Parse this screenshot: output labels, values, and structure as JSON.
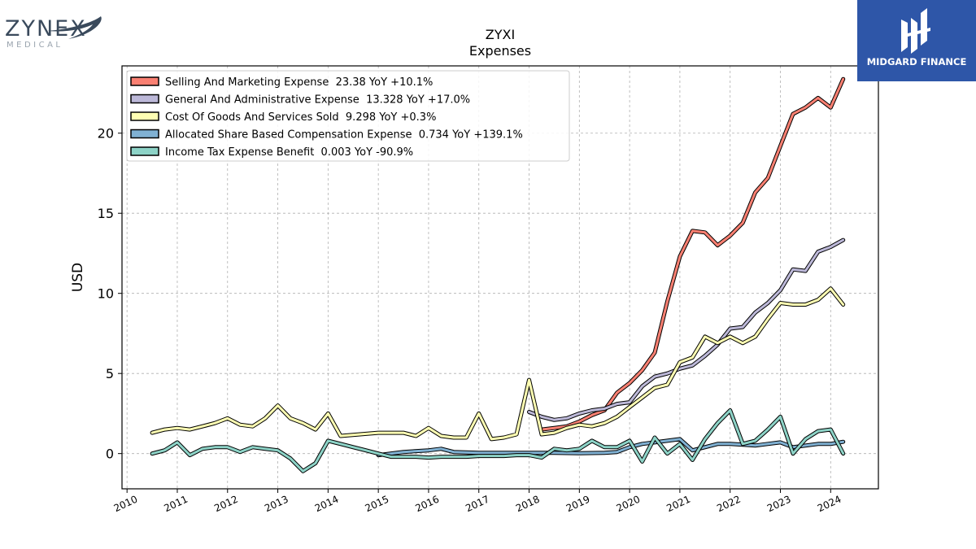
{
  "brand_left": {
    "name": "ZYNEX",
    "sub": "MEDICAL"
  },
  "brand_right": {
    "name": "MIDGARD FINANCE"
  },
  "chart_data": {
    "type": "line",
    "title": "ZYXI",
    "subtitle": "Expenses",
    "ylabel": "USD",
    "xlabel": "",
    "xlim": [
      2009.9,
      2024.95
    ],
    "ylim": [
      -2.2,
      24.2
    ],
    "yticks": [
      0,
      5,
      10,
      15,
      20
    ],
    "xticks": [
      2010,
      2011,
      2012,
      2013,
      2014,
      2015,
      2016,
      2017,
      2018,
      2019,
      2020,
      2021,
      2022,
      2023,
      2024
    ],
    "grid": true,
    "legend_position": "top-left",
    "series": [
      {
        "name": "Selling And Marketing Expense",
        "legend": "Selling And Marketing Expense  23.38 YoY +10.1%",
        "color": "#fa8072",
        "points": [
          [
            2018.25,
            1.5
          ],
          [
            2018.5,
            1.6
          ],
          [
            2018.75,
            1.7
          ],
          [
            2019.0,
            2.0
          ],
          [
            2019.25,
            2.4
          ],
          [
            2019.5,
            2.7
          ],
          [
            2019.75,
            3.8
          ],
          [
            2020.0,
            4.4
          ],
          [
            2020.25,
            5.2
          ],
          [
            2020.5,
            6.3
          ],
          [
            2020.75,
            9.5
          ],
          [
            2021.0,
            12.3
          ],
          [
            2021.25,
            13.9
          ],
          [
            2021.5,
            13.8
          ],
          [
            2021.75,
            13.0
          ],
          [
            2022.0,
            13.6
          ],
          [
            2022.25,
            14.4
          ],
          [
            2022.5,
            16.3
          ],
          [
            2022.75,
            17.2
          ],
          [
            2023.0,
            19.2
          ],
          [
            2023.25,
            21.2
          ],
          [
            2023.5,
            21.6
          ],
          [
            2023.75,
            22.2
          ],
          [
            2024.0,
            21.6
          ],
          [
            2024.25,
            23.38
          ]
        ]
      },
      {
        "name": "General And Administrative Expense",
        "legend": "General And Administrative Expense  13.328 YoY +17.0%",
        "color": "#bcb8d8",
        "points": [
          [
            2018.0,
            2.6
          ],
          [
            2018.25,
            2.3
          ],
          [
            2018.5,
            2.1
          ],
          [
            2018.75,
            2.2
          ],
          [
            2019.0,
            2.5
          ],
          [
            2019.25,
            2.7
          ],
          [
            2019.5,
            2.8
          ],
          [
            2019.75,
            3.1
          ],
          [
            2020.0,
            3.2
          ],
          [
            2020.25,
            4.2
          ],
          [
            2020.5,
            4.8
          ],
          [
            2020.75,
            5.0
          ],
          [
            2021.0,
            5.3
          ],
          [
            2021.25,
            5.5
          ],
          [
            2021.5,
            6.1
          ],
          [
            2021.75,
            6.8
          ],
          [
            2022.0,
            7.8
          ],
          [
            2022.25,
            7.9
          ],
          [
            2022.5,
            8.8
          ],
          [
            2022.75,
            9.4
          ],
          [
            2023.0,
            10.2
          ],
          [
            2023.25,
            11.5
          ],
          [
            2023.5,
            11.4
          ],
          [
            2023.75,
            12.6
          ],
          [
            2024.0,
            12.9
          ],
          [
            2024.25,
            13.328
          ]
        ]
      },
      {
        "name": "Cost Of Goods And Services Sold",
        "legend": "Cost Of Goods And Services Sold  9.298 YoY +0.3%",
        "color": "#ffffb3",
        "points": [
          [
            2010.5,
            1.3
          ],
          [
            2010.75,
            1.5
          ],
          [
            2011.0,
            1.6
          ],
          [
            2011.25,
            1.5
          ],
          [
            2011.5,
            1.7
          ],
          [
            2011.75,
            1.9
          ],
          [
            2012.0,
            2.2
          ],
          [
            2012.25,
            1.8
          ],
          [
            2012.5,
            1.7
          ],
          [
            2012.75,
            2.2
          ],
          [
            2013.0,
            3.0
          ],
          [
            2013.25,
            2.2
          ],
          [
            2013.5,
            1.9
          ],
          [
            2013.75,
            1.5
          ],
          [
            2014.0,
            2.5
          ],
          [
            2014.25,
            1.1
          ],
          [
            2015.0,
            1.3
          ],
          [
            2015.25,
            1.3
          ],
          [
            2015.5,
            1.3
          ],
          [
            2015.75,
            1.1
          ],
          [
            2016.0,
            1.6
          ],
          [
            2016.25,
            1.1
          ],
          [
            2016.5,
            1.0
          ],
          [
            2016.75,
            1.0
          ],
          [
            2017.0,
            2.5
          ],
          [
            2017.25,
            0.9
          ],
          [
            2017.5,
            1.0
          ],
          [
            2017.75,
            1.2
          ],
          [
            2018.0,
            4.6
          ],
          [
            2018.25,
            1.2
          ],
          [
            2018.5,
            1.3
          ],
          [
            2018.75,
            1.6
          ],
          [
            2019.0,
            1.8
          ],
          [
            2019.25,
            1.7
          ],
          [
            2019.5,
            1.9
          ],
          [
            2019.75,
            2.3
          ],
          [
            2020.0,
            2.9
          ],
          [
            2020.25,
            3.5
          ],
          [
            2020.5,
            4.1
          ],
          [
            2020.75,
            4.3
          ],
          [
            2021.0,
            5.7
          ],
          [
            2021.25,
            6.0
          ],
          [
            2021.5,
            7.3
          ],
          [
            2021.75,
            6.9
          ],
          [
            2022.0,
            7.3
          ],
          [
            2022.25,
            6.9
          ],
          [
            2022.5,
            7.3
          ],
          [
            2022.75,
            8.4
          ],
          [
            2023.0,
            9.4
          ],
          [
            2023.25,
            9.3
          ],
          [
            2023.5,
            9.3
          ],
          [
            2023.75,
            9.6
          ],
          [
            2024.0,
            10.3
          ],
          [
            2024.25,
            9.298
          ]
        ]
      },
      {
        "name": "Allocated Share Based Compensation Expense",
        "legend": "Allocated Share Based Compensation Expense  0.734 YoY +139.1%",
        "color": "#80b1d3",
        "points": [
          [
            2015.0,
            -0.1
          ],
          [
            2015.5,
            0.1
          ],
          [
            2016.0,
            0.2
          ],
          [
            2016.25,
            0.3
          ],
          [
            2016.5,
            0.1
          ],
          [
            2017.0,
            0.05
          ],
          [
            2017.5,
            0.05
          ],
          [
            2018.0,
            0.05
          ],
          [
            2018.5,
            0.05
          ],
          [
            2019.0,
            0.02
          ],
          [
            2019.5,
            0.05
          ],
          [
            2019.75,
            0.1
          ],
          [
            2020.0,
            0.4
          ],
          [
            2020.25,
            0.6
          ],
          [
            2020.5,
            0.7
          ],
          [
            2020.75,
            0.8
          ],
          [
            2021.0,
            0.9
          ],
          [
            2021.25,
            0.2
          ],
          [
            2021.5,
            0.4
          ],
          [
            2021.75,
            0.6
          ],
          [
            2022.0,
            0.6
          ],
          [
            2022.25,
            0.55
          ],
          [
            2022.5,
            0.5
          ],
          [
            2022.75,
            0.6
          ],
          [
            2023.0,
            0.7
          ],
          [
            2023.25,
            0.4
          ],
          [
            2023.5,
            0.5
          ],
          [
            2023.75,
            0.6
          ],
          [
            2024.0,
            0.6
          ],
          [
            2024.25,
            0.734
          ]
        ]
      },
      {
        "name": "Income Tax Expense Benefit",
        "legend": "Income Tax Expense Benefit  0.003 YoY -90.9%",
        "color": "#8dd3c7",
        "points": [
          [
            2010.5,
            0.0
          ],
          [
            2010.75,
            0.2
          ],
          [
            2011.0,
            0.7
          ],
          [
            2011.25,
            -0.1
          ],
          [
            2011.5,
            0.3
          ],
          [
            2011.75,
            0.4
          ],
          [
            2012.0,
            0.4
          ],
          [
            2012.25,
            0.1
          ],
          [
            2012.5,
            0.4
          ],
          [
            2012.75,
            0.3
          ],
          [
            2013.0,
            0.2
          ],
          [
            2013.25,
            -0.3
          ],
          [
            2013.5,
            -1.1
          ],
          [
            2013.75,
            -0.6
          ],
          [
            2014.0,
            0.8
          ],
          [
            2014.25,
            0.6
          ],
          [
            2014.5,
            0.4
          ],
          [
            2014.75,
            0.2
          ],
          [
            2015.0,
            0.0
          ],
          [
            2015.25,
            -0.2
          ],
          [
            2015.5,
            -0.2
          ],
          [
            2015.75,
            -0.2
          ],
          [
            2016.0,
            -0.25
          ],
          [
            2016.25,
            -0.2
          ],
          [
            2016.5,
            -0.2
          ],
          [
            2016.75,
            -0.2
          ],
          [
            2017.0,
            -0.15
          ],
          [
            2017.5,
            -0.15
          ],
          [
            2017.75,
            -0.1
          ],
          [
            2018.0,
            -0.1
          ],
          [
            2018.25,
            -0.25
          ],
          [
            2018.5,
            0.3
          ],
          [
            2018.75,
            0.2
          ],
          [
            2019.0,
            0.3
          ],
          [
            2019.25,
            0.8
          ],
          [
            2019.5,
            0.4
          ],
          [
            2019.75,
            0.4
          ],
          [
            2020.0,
            0.8
          ],
          [
            2020.25,
            -0.5
          ],
          [
            2020.5,
            1.0
          ],
          [
            2020.75,
            0.0
          ],
          [
            2021.0,
            0.6
          ],
          [
            2021.25,
            -0.4
          ],
          [
            2021.5,
            0.9
          ],
          [
            2021.75,
            1.9
          ],
          [
            2022.0,
            2.7
          ],
          [
            2022.25,
            0.6
          ],
          [
            2022.5,
            0.8
          ],
          [
            2022.75,
            1.5
          ],
          [
            2023.0,
            2.3
          ],
          [
            2023.25,
            0.0
          ],
          [
            2023.5,
            0.9
          ],
          [
            2023.75,
            1.4
          ],
          [
            2024.0,
            1.5
          ],
          [
            2024.25,
            0.003
          ]
        ]
      }
    ]
  }
}
